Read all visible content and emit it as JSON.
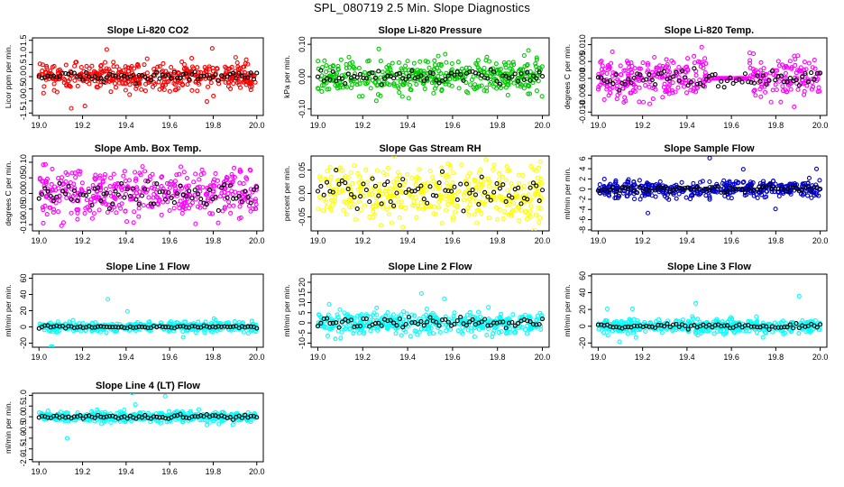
{
  "title": "SPL_080719  2.5 Min. Slope Diagnostics",
  "chart_data": [
    {
      "type": "scatter",
      "title": "Slope Li-820 CO2",
      "ylabel": "Licor ppm per min.",
      "xlim": [
        18.97,
        20.03
      ],
      "ylim": [
        -1.6,
        1.6
      ],
      "xticks": [
        19.0,
        19.2,
        19.4,
        19.6,
        19.8,
        20.0
      ],
      "yticks": [
        -1.5,
        -1.0,
        -0.5,
        0.0,
        0.5,
        1.0,
        1.5
      ],
      "yticklabels": [
        "-1.5",
        "-1.0",
        "-0.5",
        "0.0",
        "0.5",
        "1.0",
        "1.5"
      ],
      "color": "#ff0000",
      "series": [
        {
          "name": "slope",
          "spread": 0.28
        },
        {
          "name": "mean",
          "spread": 0.1
        }
      ]
    },
    {
      "type": "scatter",
      "title": "Slope Li-820 Pressure",
      "ylabel": "kPa per min.",
      "xlim": [
        18.97,
        20.03
      ],
      "ylim": [
        -0.12,
        0.12
      ],
      "xticks": [
        19.0,
        19.2,
        19.4,
        19.6,
        19.8,
        20.0
      ],
      "yticks": [
        -0.1,
        0.0,
        0.1
      ],
      "yticklabels": [
        "-0.10",
        "0.00",
        "0.10"
      ],
      "color": "#00cc00",
      "series": [
        {
          "name": "slope",
          "spread": 0.025
        },
        {
          "name": "mean",
          "spread": 0.01
        }
      ]
    },
    {
      "type": "scatter",
      "title": "Slope Li-820 Temp.",
      "ylabel": "degrees C per min.",
      "xlim": [
        18.97,
        20.03
      ],
      "ylim": [
        -0.011,
        0.012
      ],
      "xticks": [
        19.0,
        19.2,
        19.4,
        19.6,
        19.8,
        20.0
      ],
      "yticks": [
        -0.01,
        -0.005,
        0.0,
        0.005,
        0.01
      ],
      "yticklabels": [
        "-0.010",
        "-0.005",
        "0.000",
        "0.005",
        "0.010"
      ],
      "color": "#ff00ff",
      "series": [
        {
          "name": "slope",
          "spread": 0.003
        },
        {
          "name": "mean",
          "spread": 0.0012
        }
      ]
    },
    {
      "type": "scatter",
      "title": "Slope Amb. Box Temp.",
      "ylabel": "degrees C per min.",
      "xlim": [
        18.97,
        20.03
      ],
      "ylim": [
        -0.12,
        0.12
      ],
      "xticks": [
        19.0,
        19.2,
        19.4,
        19.6,
        19.8,
        20.0
      ],
      "yticks": [
        -0.1,
        -0.05,
        0.0,
        0.05,
        0.1
      ],
      "yticklabels": [
        "-0.10",
        "-0.05",
        "0.00",
        "0.05",
        "0.10"
      ],
      "color": "#ff00ff",
      "series": [
        {
          "name": "slope",
          "spread": 0.035
        },
        {
          "name": "mean",
          "spread": 0.02
        }
      ]
    },
    {
      "type": "scatter",
      "title": "Slope Gas Stream RH",
      "ylabel": "percent per min.",
      "xlim": [
        18.97,
        20.03
      ],
      "ylim": [
        -0.08,
        0.08
      ],
      "xticks": [
        19.0,
        19.2,
        19.4,
        19.6,
        19.8,
        20.0
      ],
      "yticks": [
        -0.05,
        0.0,
        0.05
      ],
      "yticklabels": [
        "-0.05",
        "0.00",
        "0.05"
      ],
      "color": "#ffff00",
      "series": [
        {
          "name": "slope",
          "spread": 0.028
        },
        {
          "name": "mean",
          "spread": 0.018
        }
      ]
    },
    {
      "type": "scatter",
      "title": "Slope Sample Flow",
      "ylabel": "ml/min per min.",
      "xlim": [
        18.97,
        20.03
      ],
      "ylim": [
        -8.2,
        6.5
      ],
      "xticks": [
        19.0,
        19.2,
        19.4,
        19.6,
        19.8,
        20.0
      ],
      "yticks": [
        -8,
        -6,
        -4,
        -2,
        0,
        2,
        4,
        6
      ],
      "yticklabels": [
        "-8",
        "-6",
        "-4",
        "-2",
        "0",
        "2",
        "4",
        "6"
      ],
      "color": "#0000cc",
      "series": [
        {
          "name": "slope",
          "spread": 0.8
        },
        {
          "name": "mean",
          "spread": 0.3
        }
      ]
    },
    {
      "type": "scatter",
      "title": "Slope Line 1 Flow",
      "ylabel": "ml/min per min.",
      "xlim": [
        18.97,
        20.03
      ],
      "ylim": [
        -25,
        65
      ],
      "xticks": [
        19.0,
        19.2,
        19.4,
        19.6,
        19.8,
        20.0
      ],
      "yticks": [
        -20,
        0,
        20,
        40,
        60
      ],
      "yticklabels": [
        "-20",
        "0",
        "20",
        "40",
        "60"
      ],
      "color": "#00ffff",
      "series": [
        {
          "name": "slope",
          "spread": 3
        },
        {
          "name": "mean",
          "spread": 0.8
        }
      ]
    },
    {
      "type": "scatter",
      "title": "Slope Line 2 Flow",
      "ylabel": "ml/min per min.",
      "xlim": [
        18.97,
        20.03
      ],
      "ylim": [
        -12,
        24
      ],
      "xticks": [
        19.0,
        19.2,
        19.4,
        19.6,
        19.8,
        20.0
      ],
      "yticks": [
        -10,
        -5,
        0,
        5,
        10,
        15,
        20
      ],
      "yticklabels": [
        "-10",
        "-5",
        "0",
        "5",
        "10",
        "15",
        "20"
      ],
      "color": "#00ffff",
      "series": [
        {
          "name": "slope",
          "spread": 2.5
        },
        {
          "name": "mean",
          "spread": 1.2
        }
      ]
    },
    {
      "type": "scatter",
      "title": "Slope Line 3 Flow",
      "ylabel": "ml/min per min.",
      "xlim": [
        18.97,
        20.03
      ],
      "ylim": [
        -25,
        62
      ],
      "xticks": [
        19.0,
        19.2,
        19.4,
        19.6,
        19.8,
        20.0
      ],
      "yticks": [
        -20,
        0,
        20,
        40,
        60
      ],
      "yticklabels": [
        "-20",
        "0",
        "20",
        "40",
        "60"
      ],
      "color": "#00ffff",
      "series": [
        {
          "name": "slope",
          "spread": 4
        },
        {
          "name": "mean",
          "spread": 1.5
        }
      ]
    },
    {
      "type": "scatter",
      "title": "Slope Line 4 (LT) Flow",
      "ylabel": "ml/min per min.",
      "xlim": [
        18.97,
        20.03
      ],
      "ylim": [
        -2.1,
        1.1
      ],
      "xticks": [
        19.0,
        19.2,
        19.4,
        19.6,
        19.8,
        20.0
      ],
      "yticks": [
        -2.0,
        -1.5,
        -1.0,
        -0.5,
        0.0,
        0.5,
        1.0
      ],
      "yticklabels": [
        "-2.0",
        "-1.5",
        "-1.0",
        "-0.5",
        "0.0",
        "0.5",
        "1.0"
      ],
      "color": "#00ffff",
      "series": [
        {
          "name": "slope",
          "spread": 0.12
        },
        {
          "name": "mean",
          "spread": 0.05
        }
      ]
    }
  ]
}
